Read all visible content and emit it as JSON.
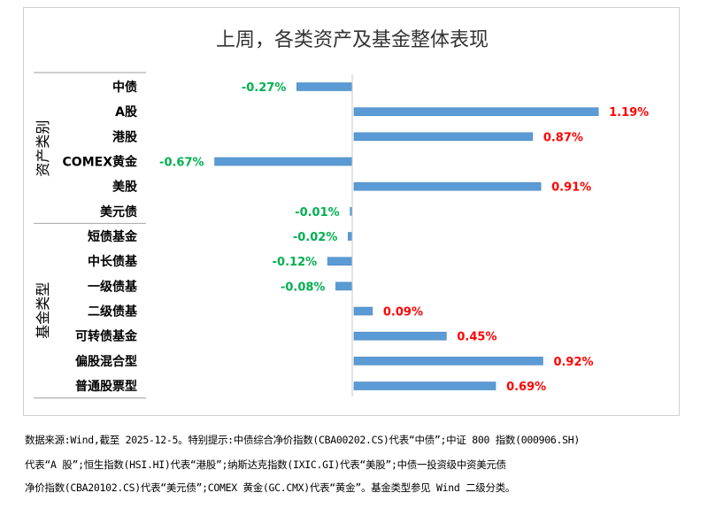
{
  "chart_data": {
    "type": "bar",
    "orientation": "horizontal",
    "title": "上周，各类资产及基金整体表现",
    "groups": [
      {
        "name": "资产类别",
        "categories": [
          "中债",
          "A股",
          "港股",
          "COMEX黄金",
          "美股",
          "美元债"
        ],
        "values": [
          -0.27,
          1.19,
          0.87,
          -0.67,
          0.91,
          -0.01
        ],
        "labels": [
          "-0.27%",
          "1.19%",
          "0.87%",
          "-0.67%",
          "0.91%",
          "-0.01%"
        ]
      },
      {
        "name": "基金类型",
        "categories": [
          "短债基金",
          "中长债基",
          "一级债基",
          "二级债基",
          "可转债基金",
          "偏股混合型",
          "普通股票型"
        ],
        "values": [
          -0.02,
          -0.12,
          -0.08,
          0.09,
          0.45,
          0.92,
          0.69
        ],
        "labels": [
          "-0.02%",
          "-0.12%",
          "-0.08%",
          "0.09%",
          "0.45%",
          "0.92%",
          "0.69%"
        ]
      }
    ],
    "unit": "%",
    "grid": false,
    "colors": {
      "bar": "#5b9bd5",
      "positive_label": "#ff0000",
      "negative_label": "#00b050"
    }
  },
  "footer": {
    "lines": [
      "数据来源:Wind,截至 2025-12-5。特别提示:中债综合净价指数(CBA00202.CS)代表“中债”;中证 800 指数(000906.SH)",
      "代表“A 股”;恒生指数(HSI.HI)代表“港股”;纳斯达克指数(IXIC.GI)代表“美股”;中债一投资级中资美元债",
      "净价指数(CBA20102.CS)代表“美元债”;COMEX 黄金(GC.CMX)代表“黄金”。基金类型参见 Wind 二级分类。"
    ]
  }
}
